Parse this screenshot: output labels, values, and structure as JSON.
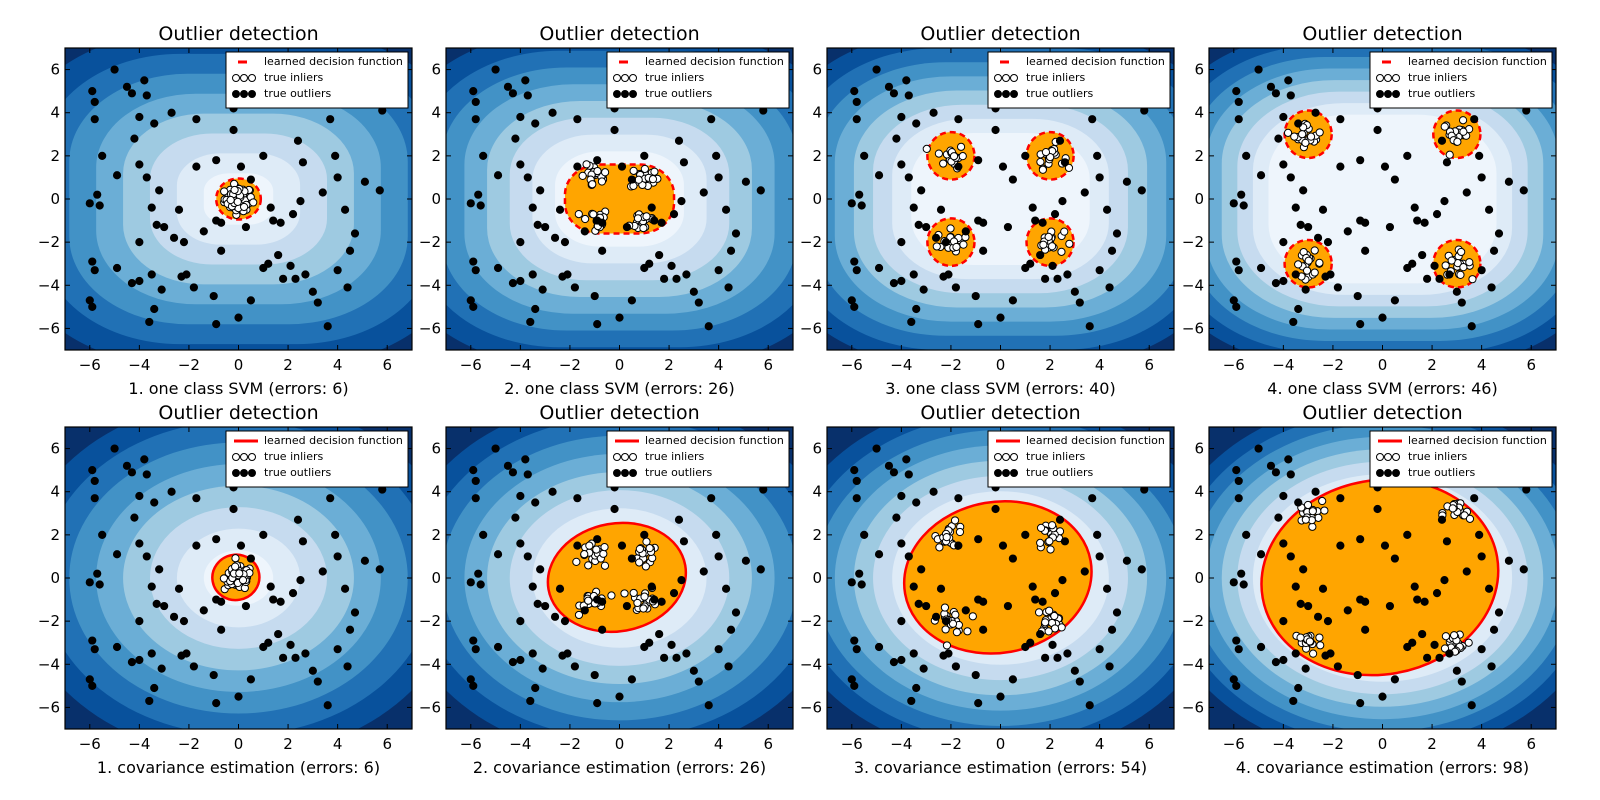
{
  "figure": {
    "background": "#ffffff"
  },
  "colors": {
    "contour_levels": [
      "#08306b",
      "#08519c",
      "#2171b5",
      "#4292c6",
      "#6baed6",
      "#9ecae1",
      "#c6dbef",
      "#deebf7",
      "#eef5fc"
    ],
    "inlier_region": "#ffa500",
    "decision_line": "#ff0000",
    "inlier_marker": "#ffffff",
    "outlier_marker": "#000000"
  },
  "legend_entries": {
    "decision": "learned decision function",
    "inliers": "true inliers",
    "outliers": "true outliers"
  },
  "chart_data": [
    {
      "type": "scatter",
      "title": "Outlier detection",
      "xlabel": "1. one class SVM (errors: 6)",
      "method": "svm",
      "clusters": [
        [
          0,
          0
        ]
      ],
      "errors": 6,
      "xlim": [
        -7,
        7
      ],
      "ylim": [
        -7,
        7
      ],
      "xticks": [
        -6,
        -4,
        -2,
        0,
        2,
        4,
        6
      ],
      "yticks": [
        -6,
        -4,
        -2,
        0,
        2,
        4,
        6
      ],
      "legend_position": "upper right",
      "decision_style": "dashed",
      "grid": false
    },
    {
      "type": "scatter",
      "title": "Outlier detection",
      "xlabel": "2. one class SVM (errors: 26)",
      "method": "svm",
      "clusters": [
        [
          -1,
          1
        ],
        [
          1,
          1
        ],
        [
          -1,
          -1
        ],
        [
          1,
          -1
        ]
      ],
      "errors": 26,
      "xlim": [
        -7,
        7
      ],
      "ylim": [
        -7,
        7
      ],
      "xticks": [
        -6,
        -4,
        -2,
        0,
        2,
        4,
        6
      ],
      "yticks": [
        -6,
        -4,
        -2,
        0,
        2,
        4,
        6
      ],
      "legend_position": "upper right",
      "decision_style": "dashed",
      "grid": false
    },
    {
      "type": "scatter",
      "title": "Outlier detection",
      "xlabel": "3. one class SVM (errors: 40)",
      "method": "svm",
      "clusters": [
        [
          -2,
          2
        ],
        [
          2,
          2
        ],
        [
          -2,
          -2
        ],
        [
          2,
          -2
        ]
      ],
      "errors": 40,
      "xlim": [
        -7,
        7
      ],
      "ylim": [
        -7,
        7
      ],
      "xticks": [
        -6,
        -4,
        -2,
        0,
        2,
        4,
        6
      ],
      "yticks": [
        -6,
        -4,
        -2,
        0,
        2,
        4,
        6
      ],
      "legend_position": "upper right",
      "decision_style": "dashed",
      "grid": false
    },
    {
      "type": "scatter",
      "title": "Outlier detection",
      "xlabel": "4. one class SVM (errors: 46)",
      "method": "svm",
      "clusters": [
        [
          -3,
          3
        ],
        [
          3,
          3
        ],
        [
          -3,
          -3
        ],
        [
          3,
          -3
        ]
      ],
      "errors": 46,
      "xlim": [
        -7,
        7
      ],
      "ylim": [
        -7,
        7
      ],
      "xticks": [
        -6,
        -4,
        -2,
        0,
        2,
        4,
        6
      ],
      "yticks": [
        -6,
        -4,
        -2,
        0,
        2,
        4,
        6
      ],
      "legend_position": "upper right",
      "decision_style": "dashed",
      "grid": false
    },
    {
      "type": "scatter",
      "title": "Outlier detection",
      "xlabel": "1. covariance estimation (errors: 6)",
      "method": "cov",
      "clusters": [
        [
          0,
          0
        ]
      ],
      "errors": 6,
      "xlim": [
        -7,
        7
      ],
      "ylim": [
        -7,
        7
      ],
      "xticks": [
        -6,
        -4,
        -2,
        0,
        2,
        4,
        6
      ],
      "yticks": [
        -6,
        -4,
        -2,
        0,
        2,
        4,
        6
      ],
      "legend_position": "upper right",
      "decision_style": "solid",
      "grid": false
    },
    {
      "type": "scatter",
      "title": "Outlier detection",
      "xlabel": "2. covariance estimation (errors: 26)",
      "method": "cov",
      "clusters": [
        [
          -1,
          1
        ],
        [
          1,
          1
        ],
        [
          -1,
          -1
        ],
        [
          1,
          -1
        ]
      ],
      "errors": 26,
      "xlim": [
        -7,
        7
      ],
      "ylim": [
        -7,
        7
      ],
      "xticks": [
        -6,
        -4,
        -2,
        0,
        2,
        4,
        6
      ],
      "yticks": [
        -6,
        -4,
        -2,
        0,
        2,
        4,
        6
      ],
      "legend_position": "upper right",
      "decision_style": "solid",
      "grid": false
    },
    {
      "type": "scatter",
      "title": "Outlier detection",
      "xlabel": "3. covariance estimation (errors: 54)",
      "method": "cov",
      "clusters": [
        [
          -2,
          2
        ],
        [
          2,
          2
        ],
        [
          -2,
          -2
        ],
        [
          2,
          -2
        ]
      ],
      "errors": 54,
      "xlim": [
        -7,
        7
      ],
      "ylim": [
        -7,
        7
      ],
      "xticks": [
        -6,
        -4,
        -2,
        0,
        2,
        4,
        6
      ],
      "yticks": [
        -6,
        -4,
        -2,
        0,
        2,
        4,
        6
      ],
      "legend_position": "upper right",
      "decision_style": "solid",
      "grid": false
    },
    {
      "type": "scatter",
      "title": "Outlier detection",
      "xlabel": "4. covariance estimation (errors: 98)",
      "method": "cov",
      "clusters": [
        [
          -3,
          3
        ],
        [
          3,
          3
        ],
        [
          -3,
          -3
        ],
        [
          3,
          -3
        ]
      ],
      "errors": 98,
      "xlim": [
        -7,
        7
      ],
      "ylim": [
        -7,
        7
      ],
      "xticks": [
        -6,
        -4,
        -2,
        0,
        2,
        4,
        6
      ],
      "yticks": [
        -6,
        -4,
        -2,
        0,
        2,
        4,
        6
      ],
      "legend_position": "upper right",
      "decision_style": "solid",
      "grid": false
    }
  ],
  "outlier_points": [
    [
      -5.9,
      5.0
    ],
    [
      -5.8,
      4.5
    ],
    [
      -5.0,
      6.0
    ],
    [
      -4.5,
      5.2
    ],
    [
      -4.3,
      4.9
    ],
    [
      -3.8,
      5.5
    ],
    [
      -3.7,
      4.8
    ],
    [
      -3.4,
      3.5
    ],
    [
      -4.0,
      3.8
    ],
    [
      -4.2,
      2.8
    ],
    [
      -5.8,
      3.7
    ],
    [
      -5.5,
      2.0
    ],
    [
      -5.7,
      0.2
    ],
    [
      -6.0,
      -0.2
    ],
    [
      -5.6,
      -0.3
    ],
    [
      -4.9,
      1.1
    ],
    [
      -4.0,
      1.6
    ],
    [
      -3.7,
      1.0
    ],
    [
      -3.2,
      0.4
    ],
    [
      -3.5,
      -0.4
    ],
    [
      -3.0,
      -1.3
    ],
    [
      -3.3,
      -1.2
    ],
    [
      -2.6,
      -1.8
    ],
    [
      -2.2,
      -2.0
    ],
    [
      -4.0,
      -2.0
    ],
    [
      -5.9,
      -2.9
    ],
    [
      -5.8,
      -3.3
    ],
    [
      -4.9,
      -3.2
    ],
    [
      -4.3,
      -3.9
    ],
    [
      -4.0,
      -3.8
    ],
    [
      -3.5,
      -3.5
    ],
    [
      -3.1,
      -4.2
    ],
    [
      -3.4,
      -5.1
    ],
    [
      -2.3,
      -3.6
    ],
    [
      -1.8,
      -4.1
    ],
    [
      -6.0,
      -4.7
    ],
    [
      -5.9,
      -5.0
    ],
    [
      -3.6,
      -5.7
    ],
    [
      -2.1,
      -3.5
    ],
    [
      -1.0,
      -4.5
    ],
    [
      -0.9,
      -5.8
    ],
    [
      0.0,
      -5.5
    ],
    [
      0.5,
      -4.7
    ],
    [
      1.0,
      -3.2
    ],
    [
      1.2,
      -3.0
    ],
    [
      1.6,
      -2.6
    ],
    [
      2.1,
      -3.1
    ],
    [
      2.7,
      -3.5
    ],
    [
      2.3,
      -3.7
    ],
    [
      3.0,
      -4.3
    ],
    [
      3.2,
      -4.8
    ],
    [
      3.6,
      -5.9
    ],
    [
      4.0,
      -3.3
    ],
    [
      4.4,
      -4.1
    ],
    [
      1.4,
      -1.0
    ],
    [
      1.7,
      -1.1
    ],
    [
      2.2,
      -0.7
    ],
    [
      1.3,
      -0.4
    ],
    [
      -0.9,
      1.8
    ],
    [
      1.0,
      2.0
    ],
    [
      2.6,
      1.7
    ],
    [
      3.9,
      2.0
    ],
    [
      3.4,
      0.3
    ],
    [
      2.5,
      -0.1
    ],
    [
      4.0,
      1.0
    ],
    [
      4.3,
      -0.5
    ],
    [
      5.1,
      0.8
    ],
    [
      5.7,
      0.4
    ],
    [
      4.7,
      -1.6
    ],
    [
      4.5,
      -2.4
    ],
    [
      3.7,
      3.7
    ],
    [
      5.8,
      4.1
    ],
    [
      3.0,
      4.8
    ],
    [
      2.6,
      5.7
    ],
    [
      1.3,
      5.0
    ],
    [
      -0.2,
      4.2
    ],
    [
      -1.7,
      3.7
    ],
    [
      -2.7,
      4.0
    ],
    [
      -1.7,
      1.5
    ],
    [
      -0.2,
      3.2
    ],
    [
      0.1,
      1.5
    ],
    [
      -2.4,
      -0.5
    ],
    [
      -1.4,
      -1.5
    ],
    [
      -0.7,
      -2.4
    ],
    [
      0.3,
      -1.3
    ],
    [
      -0.9,
      -1.0
    ],
    [
      0.5,
      0.9
    ],
    [
      2.4,
      2.7
    ],
    [
      1.8,
      -3.7
    ],
    [
      -0.7,
      -1.1
    ]
  ]
}
